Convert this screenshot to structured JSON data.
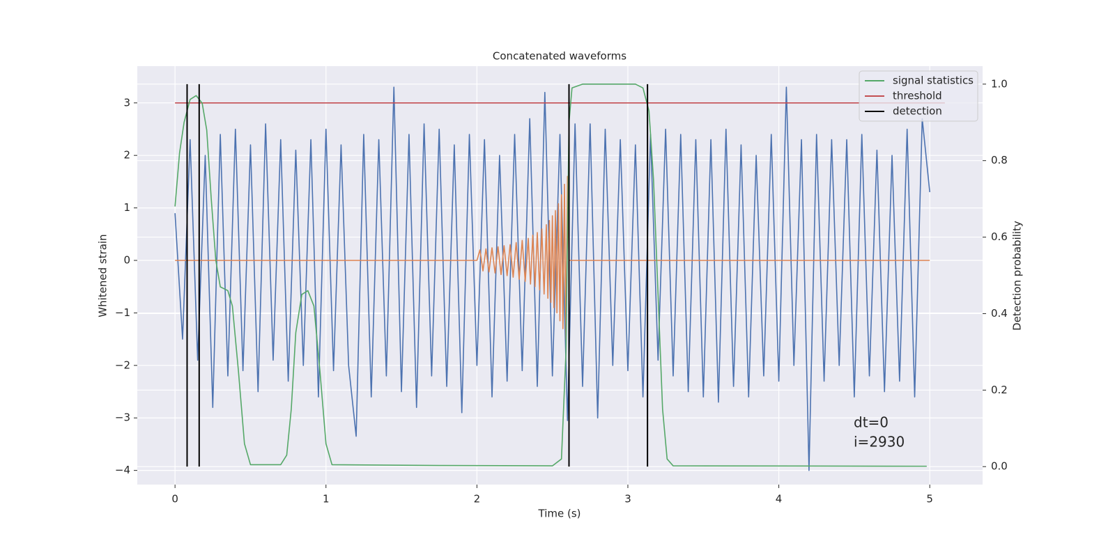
{
  "chart_data": {
    "type": "line",
    "title": "Concatenated waveforms",
    "xlabel": "Time (s)",
    "ylabel": "Whitened strain",
    "y2label": "Detection probability",
    "annotations": [
      "dt=0",
      "i=2930"
    ],
    "xlim": [
      -0.25,
      5.35
    ],
    "ylim": [
      -4.27,
      3.7
    ],
    "y2lim": [
      -0.047,
      1.047
    ],
    "xticks": [
      0,
      1,
      2,
      3,
      4,
      5
    ],
    "yticks": [
      {
        "value": -4,
        "label": "−4"
      },
      {
        "value": -3,
        "label": "−3"
      },
      {
        "value": -2,
        "label": "−2"
      },
      {
        "value": -1,
        "label": "−1"
      },
      0,
      1,
      2,
      3
    ],
    "y2ticks": [
      {
        "value": 0,
        "label": "0.0"
      },
      0.2,
      0.4,
      0.6,
      0.8,
      {
        "value": 1,
        "label": "1.0"
      }
    ],
    "grid": true,
    "legend": "upper right",
    "series": [
      {
        "type": "line",
        "color": "#4c72b0",
        "x": [
          0,
          0.05,
          0.1,
          0.15,
          0.2,
          0.25,
          0.3,
          0.35,
          0.4,
          0.45,
          0.5,
          0.55,
          0.6,
          0.65,
          0.7,
          0.75,
          0.8,
          0.85,
          0.9,
          0.95,
          1,
          1.05,
          1.1,
          1.15,
          1.2,
          1.25,
          1.3,
          1.35,
          1.4,
          1.45,
          1.5,
          1.55,
          1.6,
          1.65,
          1.7,
          1.75,
          1.8,
          1.85,
          1.9,
          1.95,
          2,
          2.05,
          2.1,
          2.15,
          2.2,
          2.25,
          2.3,
          2.35,
          2.4,
          2.45,
          2.5,
          2.55,
          2.6,
          2.65,
          2.7,
          2.75,
          2.8,
          2.85,
          2.9,
          2.95,
          3,
          3.05,
          3.1,
          3.15,
          3.2,
          3.25,
          3.3,
          3.35,
          3.4,
          3.45,
          3.5,
          3.55,
          3.6,
          3.65,
          3.7,
          3.75,
          3.8,
          3.85,
          3.9,
          3.95,
          4,
          4.05,
          4.1,
          4.15,
          4.2,
          4.25,
          4.3,
          4.35,
          4.4,
          4.45,
          4.5,
          4.55,
          4.6,
          4.65,
          4.7,
          4.75,
          4.8,
          4.85,
          4.9,
          4.95,
          5
        ],
        "values": [
          0.9,
          -1.5,
          2.3,
          -1.9,
          2.0,
          -2.8,
          2.4,
          -2.2,
          2.5,
          -2.1,
          2.2,
          -2.5,
          2.6,
          -1.9,
          2.3,
          -2.3,
          2.1,
          -2.0,
          2.3,
          -2.6,
          2.5,
          -2.1,
          2.2,
          -2.0,
          -3.35,
          2.4,
          -2.6,
          2.3,
          -2.2,
          3.3,
          -2.5,
          2.4,
          -2.8,
          2.6,
          -2.2,
          2.5,
          -2.4,
          2.2,
          -2.9,
          2.4,
          -2.0,
          2.3,
          -2.6,
          2.0,
          -2.3,
          2.4,
          -2.1,
          2.7,
          -2.4,
          3.2,
          -2.2,
          2.4,
          -3.05,
          2.6,
          -2.4,
          2.6,
          -3.0,
          2.5,
          -2.0,
          2.3,
          -2.1,
          2.2,
          -2.6,
          2.4,
          -1.9,
          2.5,
          -2.2,
          2.4,
          -2.5,
          2.3,
          -2.6,
          2.3,
          -2.7,
          2.5,
          -2.4,
          2.2,
          -2.6,
          2.0,
          -2.2,
          2.4,
          -2.3,
          3.3,
          -2.0,
          2.3,
          -4.0,
          2.4,
          -2.3,
          2.3,
          -2.0,
          2.3,
          -2.6,
          2.4,
          -2.2,
          2.1,
          -2.5,
          2.0,
          -2.3,
          2.5,
          -2.6,
          2.7,
          1.3
        ]
      },
      {
        "type": "line",
        "color": "#dd8452",
        "x": [
          0,
          2.0,
          2.02,
          2.04,
          2.06,
          2.08,
          2.1,
          2.12,
          2.14,
          2.16,
          2.18,
          2.2,
          2.22,
          2.24,
          2.26,
          2.28,
          2.3,
          2.32,
          2.34,
          2.355,
          2.37,
          2.385,
          2.4,
          2.415,
          2.43,
          2.445,
          2.46,
          2.47,
          2.48,
          2.49,
          2.5,
          2.51,
          2.52,
          2.53,
          2.54,
          2.55,
          2.56,
          2.57,
          2.58,
          2.59,
          2.6,
          2.61,
          5.0
        ],
        "values": [
          0,
          0,
          0.2,
          -0.2,
          0.22,
          -0.22,
          0.24,
          -0.24,
          0.26,
          -0.27,
          0.28,
          -0.29,
          0.3,
          -0.32,
          0.34,
          -0.36,
          0.38,
          -0.4,
          0.42,
          -0.45,
          0.48,
          -0.5,
          0.53,
          -0.56,
          0.6,
          -0.64,
          0.68,
          -0.72,
          0.76,
          -0.8,
          0.85,
          -0.9,
          0.95,
          -1.0,
          1.08,
          -1.15,
          1.25,
          -1.3,
          1.45,
          -1.5,
          1.6,
          0,
          0
        ]
      },
      {
        "type": "line",
        "name": "threshold",
        "color": "#c44e52",
        "x": [
          0,
          5.1
        ],
        "values": [
          3,
          3
        ]
      },
      {
        "type": "line",
        "name": "signal statistics",
        "color": "#55a868",
        "axis": "y2",
        "x": [
          0,
          0.03,
          0.06,
          0.1,
          0.14,
          0.18,
          0.21,
          0.24,
          0.27,
          0.3,
          0.35,
          0.38,
          0.42,
          0.46,
          0.5,
          0.7,
          0.74,
          0.77,
          0.8,
          0.84,
          0.88,
          0.92,
          0.96,
          1.0,
          1.04,
          1.75,
          2.5,
          2.56,
          2.59,
          2.61,
          2.63,
          2.7,
          3.05,
          3.1,
          3.14,
          3.17,
          3.2,
          3.23,
          3.26,
          3.3,
          4.98
        ],
        "values": [
          0.68,
          0.82,
          0.9,
          0.96,
          0.97,
          0.95,
          0.88,
          0.7,
          0.54,
          0.47,
          0.46,
          0.42,
          0.25,
          0.06,
          0.005,
          0.005,
          0.03,
          0.15,
          0.35,
          0.45,
          0.46,
          0.42,
          0.25,
          0.06,
          0.005,
          0.003,
          0.002,
          0.02,
          0.3,
          0.9,
          0.99,
          1.0,
          1.0,
          0.99,
          0.93,
          0.75,
          0.45,
          0.15,
          0.02,
          0.002,
          0.001
        ]
      },
      {
        "type": "vline",
        "name": "detection",
        "color": "#000000",
        "axis": "y2",
        "x": [
          0.08,
          0.16,
          2.61,
          3.13
        ],
        "ymin": 0,
        "ymax": 1
      }
    ]
  }
}
